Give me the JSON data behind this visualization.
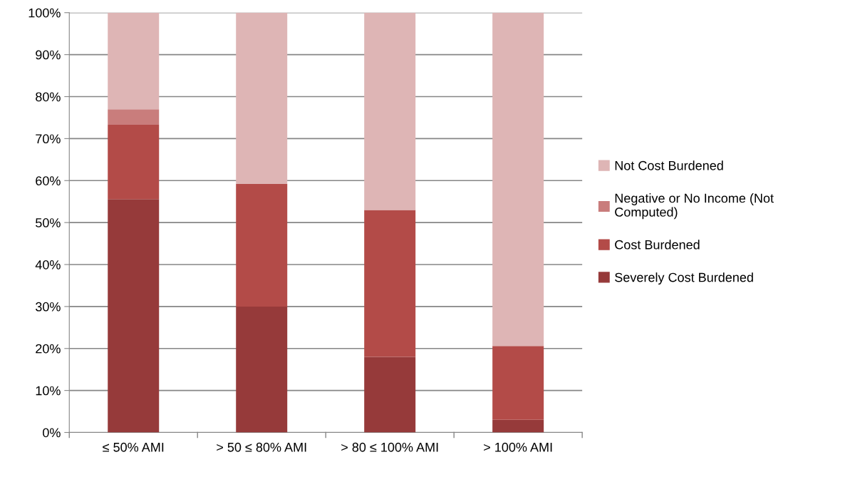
{
  "chart_data": {
    "type": "bar",
    "stacked": true,
    "categories": [
      "≤ 50% AMI",
      "> 50 ≤ 80% AMI",
      "> 80 ≤ 100% AMI",
      "> 100% AMI"
    ],
    "series": [
      {
        "name": "Severely Cost Burdened",
        "color": "#963a3a",
        "values": [
          55.6,
          30,
          18,
          3
        ]
      },
      {
        "name": "Cost Burdened",
        "color": "#b34b48",
        "values": [
          17.7,
          29.2,
          35,
          17.6
        ]
      },
      {
        "name": "Negative or No Income (Not Computed)",
        "color": "#c97d7c",
        "values": [
          3.7,
          0,
          0,
          0
        ]
      },
      {
        "name": "Not Cost Burdened",
        "color": "#deb5b5",
        "values": [
          23,
          40.8,
          47,
          79.4
        ]
      }
    ],
    "ylim": [
      0,
      100
    ],
    "yticks": [
      {
        "value": 0,
        "label": "0%"
      },
      {
        "value": 10,
        "label": "10%"
      },
      {
        "value": 20,
        "label": "20%"
      },
      {
        "value": 30,
        "label": "30%"
      },
      {
        "value": 40,
        "label": "40%"
      },
      {
        "value": 50,
        "label": "50%"
      },
      {
        "value": 60,
        "label": "60%"
      },
      {
        "value": 70,
        "label": "70%"
      },
      {
        "value": 80,
        "label": "80%"
      },
      {
        "value": 90,
        "label": "90%"
      },
      {
        "value": 100,
        "label": "100%"
      }
    ],
    "grid": "y",
    "legend": "right"
  }
}
